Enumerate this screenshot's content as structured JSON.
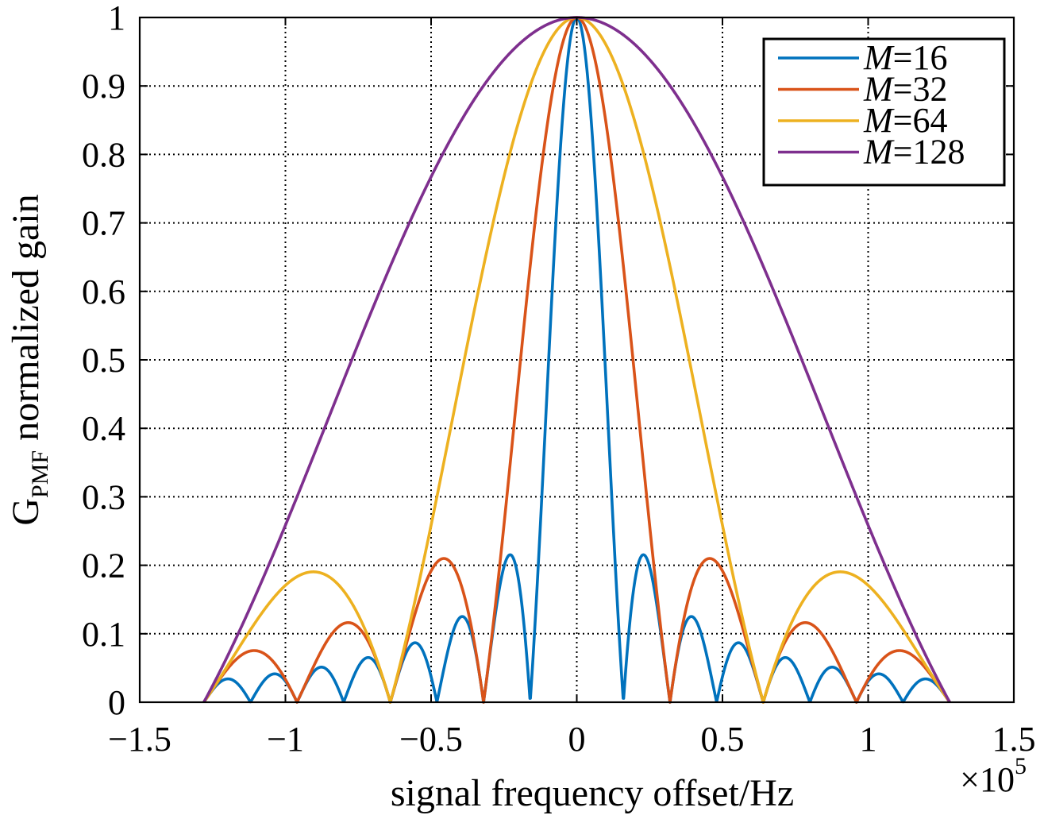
{
  "chart_data": {
    "type": "line",
    "title": "",
    "xlabel": "signal frequency offset/Hz",
    "ylabel": "G",
    "ylabel_subscript": "PMF",
    "ylabel_suffix": " normalized gain",
    "x_exponent_base": "×10",
    "x_exponent_power": "5",
    "xlim": [
      -1.5,
      1.5
    ],
    "ylim": [
      0,
      1
    ],
    "xticks": [
      -1.5,
      -1,
      -0.5,
      0,
      0.5,
      1,
      1.5
    ],
    "yticks": [
      0,
      0.1,
      0.2,
      0.3,
      0.4,
      0.5,
      0.6,
      0.7,
      0.8,
      0.9,
      1
    ],
    "xtick_labels": [
      "−1.5",
      "−1",
      "−0.5",
      "0",
      "0.5",
      "1",
      "1.5"
    ],
    "ytick_labels": [
      "0",
      "0.1",
      "0.2",
      "0.3",
      "0.4",
      "0.5",
      "0.6",
      "0.7",
      "0.8",
      "0.9",
      "1"
    ],
    "grid": true,
    "legend_position": "top-right",
    "x_support": [
      -1.28,
      1.28
    ],
    "series": [
      {
        "name": "M=16",
        "var": "M",
        "value": "=16",
        "M": 16,
        "color": "#0072BD",
        "first_null": 0.16
      },
      {
        "name": "M=32",
        "var": "M",
        "value": "=32",
        "M": 32,
        "color": "#D95319",
        "first_null": 0.32
      },
      {
        "name": "M=64",
        "var": "M",
        "value": "=64",
        "M": 64,
        "color": "#EDB120",
        "first_null": 0.64
      },
      {
        "name": "M=128",
        "var": "M",
        "value": "=128",
        "M": 128,
        "color": "#7E2F8E",
        "first_null": 1.28
      }
    ]
  }
}
